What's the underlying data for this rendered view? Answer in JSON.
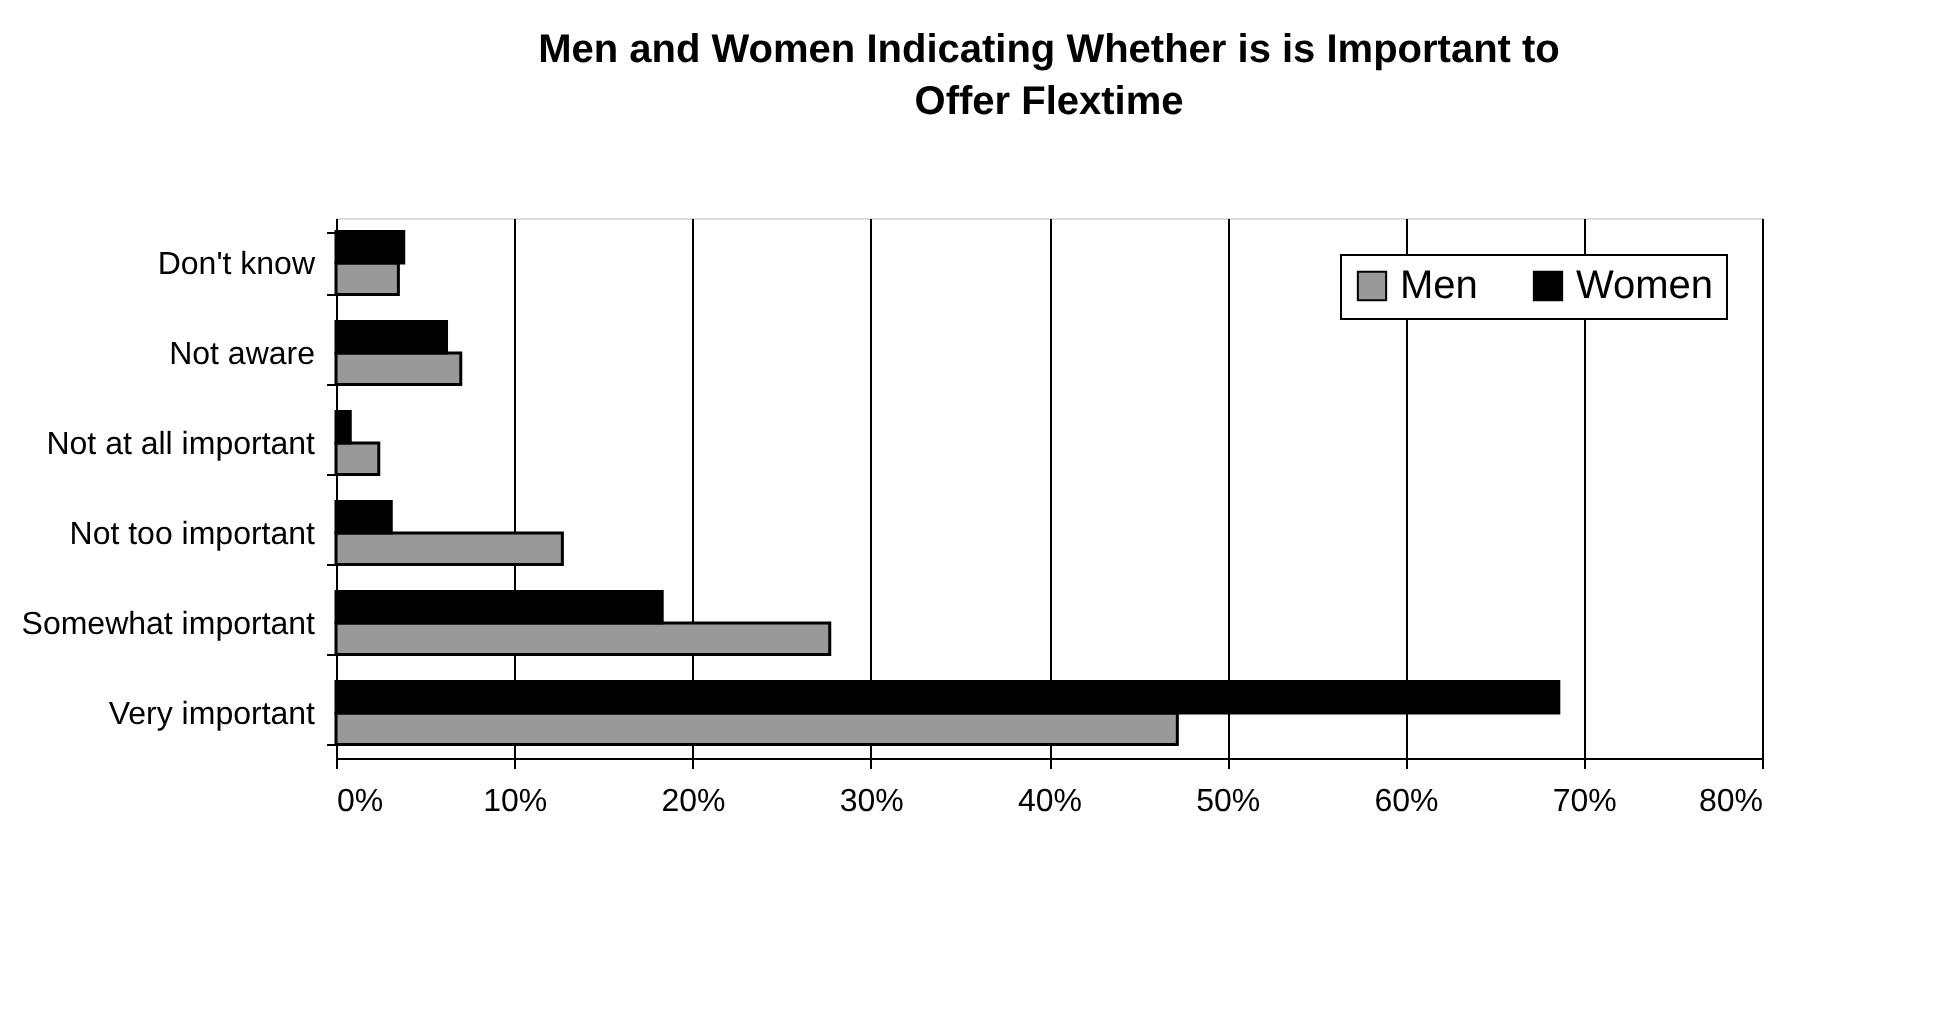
{
  "chart_data": {
    "type": "bar",
    "orientation": "horizontal",
    "title": "Men and Women Indicating Whether is is Important to Offer Flextime",
    "categories": [
      "Don't know",
      "Not aware",
      "Not at all important",
      "Not too important",
      "Somewhat important",
      "Very important"
    ],
    "series": [
      {
        "name": "Men",
        "color": "#999999",
        "values": [
          3.5,
          7.0,
          2.4,
          12.7,
          27.7,
          47.2
        ]
      },
      {
        "name": "Women",
        "color": "#000000",
        "values": [
          3.8,
          6.2,
          0.8,
          3.1,
          18.3,
          68.6
        ]
      }
    ],
    "xlim": [
      0,
      80
    ],
    "xticks": [
      {
        "value": 0,
        "label": "0%"
      },
      {
        "value": 10,
        "label": "10%"
      },
      {
        "value": 20,
        "label": "20%"
      },
      {
        "value": 30,
        "label": "30%"
      },
      {
        "value": 40,
        "label": "40%"
      },
      {
        "value": 50,
        "label": "50%"
      },
      {
        "value": 60,
        "label": "60%"
      },
      {
        "value": 70,
        "label": "70%"
      },
      {
        "value": 80,
        "label": "80%"
      }
    ],
    "grid": "x",
    "legend": "top right"
  }
}
